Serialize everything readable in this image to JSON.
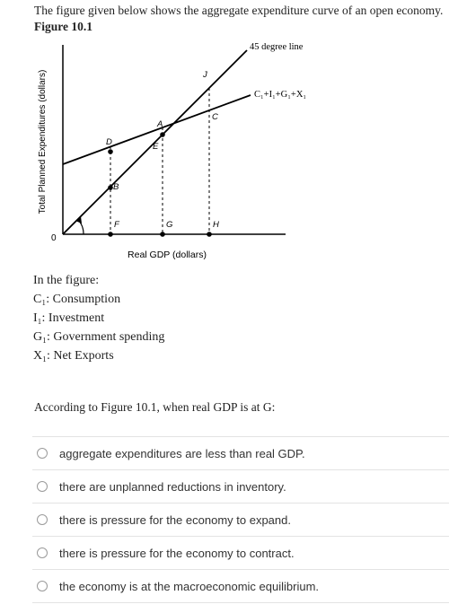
{
  "intro": {
    "text": "The figure given below shows the aggregate expenditure curve of an open economy.",
    "figure_label": "Figure 10.1"
  },
  "graph": {
    "y_axis_label": "Total Planned Expenditures (dollars)",
    "x_axis_label": "Real GDP (dollars)",
    "origin_label": "0",
    "line_45_label": "45 degree line",
    "ae_label": "C₁+I₁+G₁+X₁",
    "points": [
      "A",
      "B",
      "C",
      "D",
      "E",
      "F",
      "G",
      "H",
      "J"
    ]
  },
  "definitions": {
    "heading": "In the figure:",
    "items": [
      "C₁: Consumption",
      "I₁: Investment",
      "G₁: Government spending",
      "X₁: Net Exports"
    ]
  },
  "question": "According to Figure 10.1, when real GDP is at G:",
  "options": [
    "aggregate expenditures are less than real GDP.",
    "there are unplanned reductions in inventory.",
    "there is pressure for the economy to expand.",
    "there is pressure for the economy to contract.",
    "the economy is at the macroeconomic equilibrium."
  ]
}
